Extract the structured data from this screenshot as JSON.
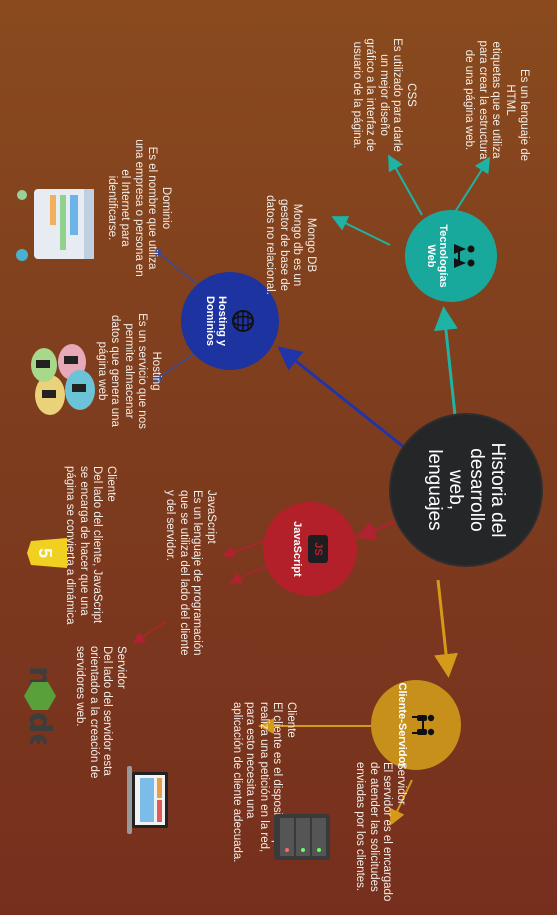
{
  "main": {
    "title": "Historia del desarrollo web, lenguajes"
  },
  "nodes": {
    "web_tech": {
      "title": "Tecnologías Web"
    },
    "hosting": {
      "title": "Hosting y Dominios"
    },
    "javascript": {
      "title": "JavaScript",
      "badge": "JS"
    },
    "client_server": {
      "title": "Cliente-Servidor"
    }
  },
  "texts": {
    "html": "HTML\netiquetas que se utiliza\npara crear la estructura\nde una página web.",
    "html_intro": "Es un lenguaje de",
    "css": "CSS\nEs utilizado para darle\nun mejor diseño\ngráfico a la interfaz de\nusuario de la página.",
    "mongo": "Mongo DB\nMongo db es un\ngestor de base de\ndatos no relacional.",
    "dominio": "Dominio\nEs el nombre que utiliza\nuna empresa o persona en\nel Internet para\nidentificarse.",
    "hosting": "Hosting\nEs un servicio que nos\npermite almacenar\ndatos que genera una\npágina web",
    "js": "JavaScript\nEs un lenguaje de programación\nque se utiliza del lado del cliente\ny del servidor.",
    "js_client": "Cliente\nDel lado del cliente, JavaScript\nse encarga de hacer que una\npágina se convierta a dinámica",
    "js_server": "Servidor\nDel lado del servidor esta\norientado a la creación de\nservidores web.",
    "cs_client": "Cliente\nEl cliente es el dispositivo que\nrealiza una petición en la red,\npara esto necesita una\naplicación de cliente adecuada.",
    "cs_server": "Servidor\nEl servidor es el encargado\nde atender las solicitudes\nenviadas por los clientes."
  },
  "colors": {
    "main": "#252628",
    "web_tech": "#19a99c",
    "hosting": "#1c33a0",
    "javascript": "#b3202a",
    "client_server": "#c6901a"
  }
}
